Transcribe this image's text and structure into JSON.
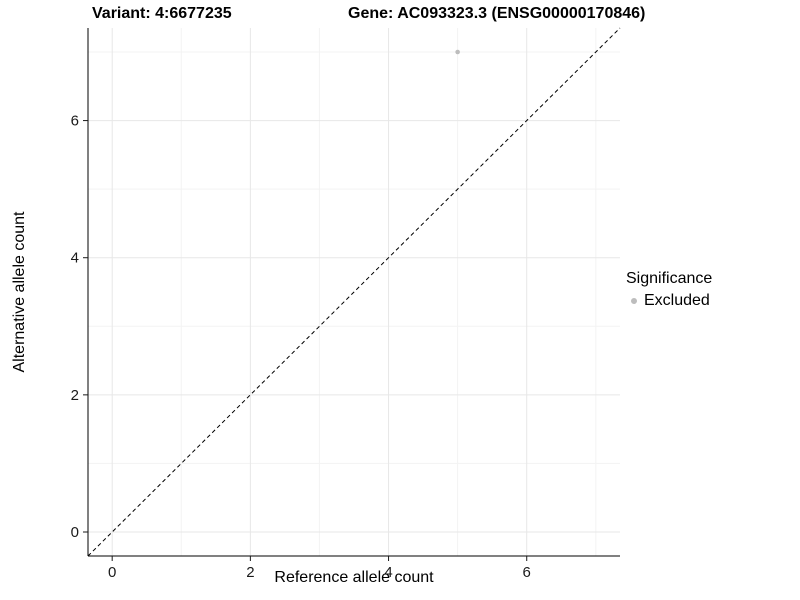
{
  "chart_data": {
    "type": "scatter",
    "title_left": "Variant: 4:6677235",
    "title_right": "Gene: AC093323.3 (ENSG00000170846)",
    "xlabel": "Reference allele count",
    "ylabel": "Alternative allele count",
    "xlim": [
      -0.35,
      7.35
    ],
    "ylim": [
      -0.35,
      7.35
    ],
    "x_ticks": [
      0,
      2,
      4,
      6
    ],
    "y_ticks": [
      0,
      2,
      4,
      6
    ],
    "minor_ticks": [
      1,
      3,
      5,
      7
    ],
    "grid": true,
    "points": [
      {
        "x": 5,
        "y": 7,
        "series": "Excluded"
      }
    ],
    "reference_line": {
      "type": "identity",
      "style": "dashed",
      "color": "#000000"
    },
    "legend": {
      "title": "Significance",
      "position": "right",
      "entries": [
        {
          "label": "Excluded",
          "color": "#bdbdbd"
        }
      ]
    },
    "colors": {
      "panel_background": "#ffffff",
      "major_grid": "#e7e7e7",
      "minor_grid": "#f3f3f3",
      "axis_line": "#000000",
      "tick_text": "#1a1a1a"
    }
  }
}
